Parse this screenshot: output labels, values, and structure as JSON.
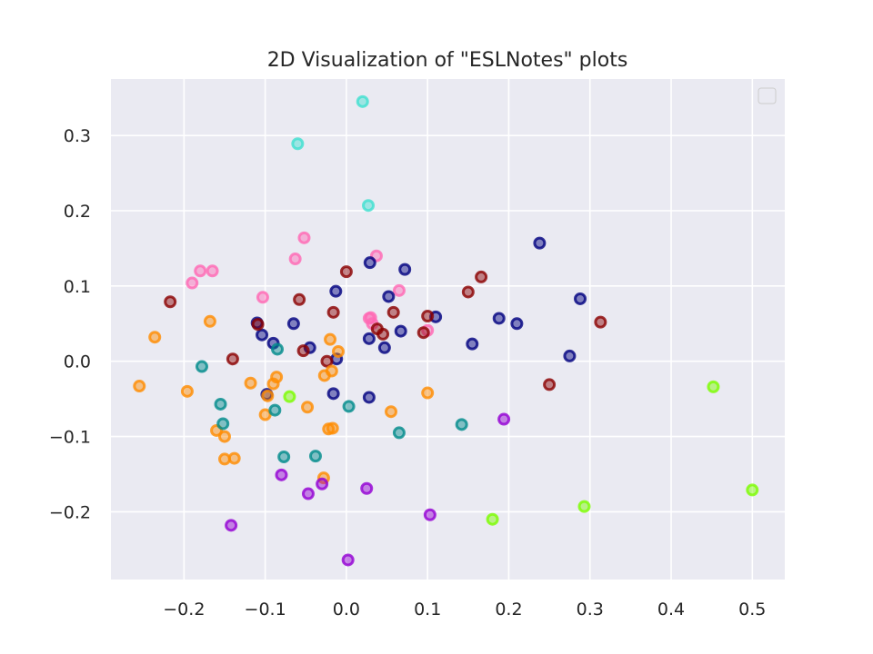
{
  "chart_data": {
    "type": "scatter",
    "title": "2D Visualization of \"ESLNotes\" plots",
    "xlabel": "",
    "ylabel": "",
    "xlim": [
      -0.29,
      0.54
    ],
    "ylim": [
      -0.29,
      0.375
    ],
    "xticks": [
      -0.2,
      -0.1,
      0.0,
      0.1,
      0.2,
      0.3,
      0.4,
      0.5
    ],
    "xtick_labels": [
      "−0.2",
      "−0.1",
      "0.0",
      "0.1",
      "0.2",
      "0.3",
      "0.4",
      "0.5"
    ],
    "yticks": [
      -0.2,
      -0.1,
      0.0,
      0.1,
      0.2,
      0.3
    ],
    "ytick_labels": [
      "−0.2",
      "−0.1",
      "0.0",
      "0.1",
      "0.2",
      "0.3"
    ],
    "grid": true,
    "legend": {
      "placement": "top-right",
      "entries": []
    },
    "style": {
      "background": "#eaeaf2",
      "grid_color": "#ffffff",
      "text_color": "#262626"
    },
    "series": [
      {
        "color": "#40e0d0",
        "points": [
          [
            0.02,
            0.345
          ],
          [
            -0.06,
            0.289
          ],
          [
            0.027,
            0.207
          ]
        ]
      },
      {
        "color": "#ff69b4",
        "points": [
          [
            -0.052,
            0.164
          ],
          [
            -0.063,
            0.136
          ],
          [
            0.037,
            0.14
          ],
          [
            -0.18,
            0.12
          ],
          [
            -0.165,
            0.12
          ],
          [
            -0.19,
            0.104
          ],
          [
            -0.103,
            0.085
          ],
          [
            0.065,
            0.094
          ],
          [
            0.028,
            0.057
          ],
          [
            0.03,
            0.058
          ],
          [
            0.1,
            0.041
          ],
          [
            0.032,
            0.05
          ]
        ]
      },
      {
        "color": "#000080",
        "points": [
          [
            0.238,
            0.157
          ],
          [
            0.029,
            0.131
          ],
          [
            0.072,
            0.122
          ],
          [
            -0.013,
            0.093
          ],
          [
            0.052,
            0.086
          ],
          [
            0.288,
            0.083
          ],
          [
            0.11,
            0.059
          ],
          [
            0.188,
            0.057
          ],
          [
            0.21,
            0.05
          ],
          [
            -0.065,
            0.05
          ],
          [
            -0.11,
            0.051
          ],
          [
            -0.104,
            0.035
          ],
          [
            -0.09,
            0.024
          ],
          [
            0.028,
            0.03
          ],
          [
            0.067,
            0.04
          ],
          [
            0.047,
            0.018
          ],
          [
            0.155,
            0.023
          ],
          [
            -0.045,
            0.018
          ],
          [
            0.275,
            0.007
          ],
          [
            -0.012,
            0.003
          ],
          [
            -0.098,
            -0.044
          ],
          [
            -0.016,
            -0.043
          ],
          [
            0.028,
            -0.048
          ]
        ]
      },
      {
        "color": "#8b0000",
        "points": [
          [
            0.166,
            0.112
          ],
          [
            0.0,
            0.119
          ],
          [
            0.15,
            0.092
          ],
          [
            -0.217,
            0.079
          ],
          [
            -0.058,
            0.082
          ],
          [
            -0.016,
            0.065
          ],
          [
            0.058,
            0.065
          ],
          [
            0.1,
            0.06
          ],
          [
            0.313,
            0.052
          ],
          [
            -0.109,
            0.049
          ],
          [
            0.095,
            0.038
          ],
          [
            0.038,
            0.043
          ],
          [
            0.045,
            0.036
          ],
          [
            -0.053,
            0.014
          ],
          [
            -0.024,
            0.0
          ],
          [
            -0.14,
            0.003
          ],
          [
            0.25,
            -0.031
          ]
        ]
      },
      {
        "color": "#ff8c00",
        "points": [
          [
            -0.168,
            0.053
          ],
          [
            -0.236,
            0.032
          ],
          [
            -0.02,
            0.029
          ],
          [
            -0.01,
            0.013
          ],
          [
            -0.255,
            -0.033
          ],
          [
            -0.196,
            -0.04
          ],
          [
            -0.118,
            -0.029
          ],
          [
            -0.086,
            -0.021
          ],
          [
            -0.09,
            -0.03
          ],
          [
            -0.027,
            -0.019
          ],
          [
            -0.018,
            -0.013
          ],
          [
            -0.097,
            -0.046
          ],
          [
            0.1,
            -0.042
          ],
          [
            -0.048,
            -0.061
          ],
          [
            -0.1,
            -0.071
          ],
          [
            0.055,
            -0.067
          ],
          [
            -0.16,
            -0.092
          ],
          [
            -0.15,
            -0.1
          ],
          [
            -0.022,
            -0.09
          ],
          [
            -0.017,
            -0.089
          ],
          [
            -0.15,
            -0.13
          ],
          [
            -0.138,
            -0.129
          ],
          [
            -0.028,
            -0.155
          ]
        ]
      },
      {
        "color": "#008b8b",
        "points": [
          [
            -0.085,
            0.016
          ],
          [
            -0.178,
            -0.007
          ],
          [
            -0.155,
            -0.057
          ],
          [
            -0.088,
            -0.065
          ],
          [
            0.003,
            -0.06
          ],
          [
            -0.152,
            -0.083
          ],
          [
            0.142,
            -0.084
          ],
          [
            0.065,
            -0.095
          ],
          [
            -0.077,
            -0.127
          ],
          [
            -0.038,
            -0.126
          ]
        ]
      },
      {
        "color": "#7cfc00",
        "points": [
          [
            -0.07,
            -0.047
          ],
          [
            0.452,
            -0.034
          ],
          [
            0.5,
            -0.171
          ],
          [
            0.293,
            -0.193
          ],
          [
            0.18,
            -0.21
          ]
        ]
      },
      {
        "color": "#9400d3",
        "points": [
          [
            0.194,
            -0.077
          ],
          [
            -0.08,
            -0.151
          ],
          [
            -0.03,
            -0.163
          ],
          [
            -0.047,
            -0.176
          ],
          [
            0.025,
            -0.169
          ],
          [
            0.103,
            -0.204
          ],
          [
            -0.142,
            -0.218
          ],
          [
            0.002,
            -0.264
          ]
        ]
      }
    ]
  }
}
